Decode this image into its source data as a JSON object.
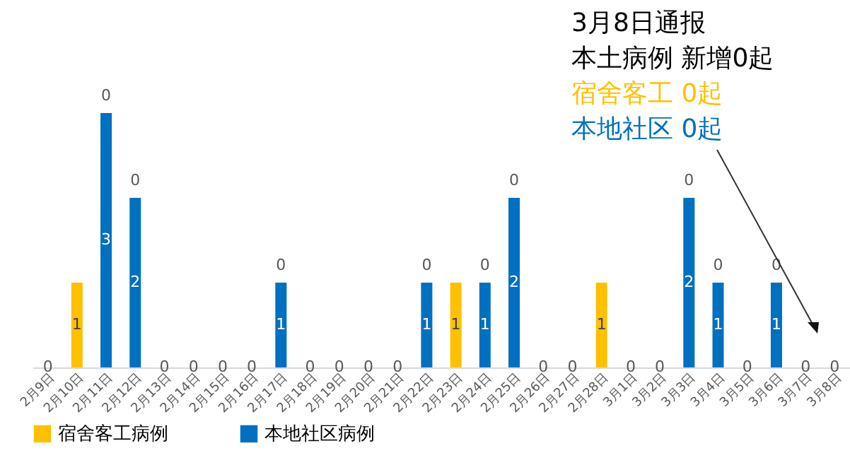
{
  "chart_data": {
    "type": "bar",
    "stacked": true,
    "legend": "bottom",
    "grid": false,
    "categories": [
      "2月9日",
      "2月10日",
      "2月11日",
      "2月12日",
      "2月13日",
      "2月14日",
      "2月15日",
      "2月16日",
      "2月17日",
      "2月18日",
      "2月19日",
      "2月20日",
      "2月21日",
      "2月22日",
      "2月23日",
      "2月24日",
      "2月25日",
      "2月26日",
      "2月27日",
      "2月28日",
      "3月1日",
      "3月2日",
      "3月3日",
      "3月4日",
      "3月5日",
      "3月6日",
      "3月7日",
      "3月8日"
    ],
    "series": [
      {
        "name": "本地社区病例",
        "color": "#0070c0",
        "values": [
          0,
          0,
          3,
          2,
          0,
          0,
          0,
          0,
          1,
          0,
          0,
          0,
          0,
          1,
          0,
          1,
          2,
          0,
          0,
          0,
          0,
          0,
          2,
          1,
          0,
          1,
          0,
          0
        ],
        "value_labels": [
          "0",
          null,
          "3",
          "2",
          "0",
          "0",
          "0",
          "0",
          "1",
          "0",
          "0",
          "0",
          "0",
          "1",
          null,
          "1",
          "2",
          "0",
          "0",
          null,
          "0",
          "0",
          "2",
          "1",
          "0",
          "1",
          "0",
          "0"
        ]
      },
      {
        "name": "宿舍客工病例",
        "color": "#ffc000",
        "values": [
          0,
          1,
          0,
          0,
          0,
          0,
          0,
          0,
          0,
          0,
          0,
          0,
          0,
          0,
          1,
          0,
          0,
          0,
          0,
          1,
          0,
          0,
          0,
          0,
          0,
          0,
          0,
          0
        ],
        "value_labels": [
          null,
          "1",
          "0",
          "0",
          null,
          null,
          null,
          null,
          "0",
          null,
          null,
          null,
          null,
          "0",
          "1",
          "0",
          "0",
          null,
          null,
          "1",
          null,
          null,
          "0",
          "0",
          null,
          "0",
          null,
          null
        ]
      }
    ],
    "annotations": [
      "3月8日通报",
      "本土病例 新增0起",
      "宿舍客工 0起",
      "本地社区 0起"
    ]
  }
}
